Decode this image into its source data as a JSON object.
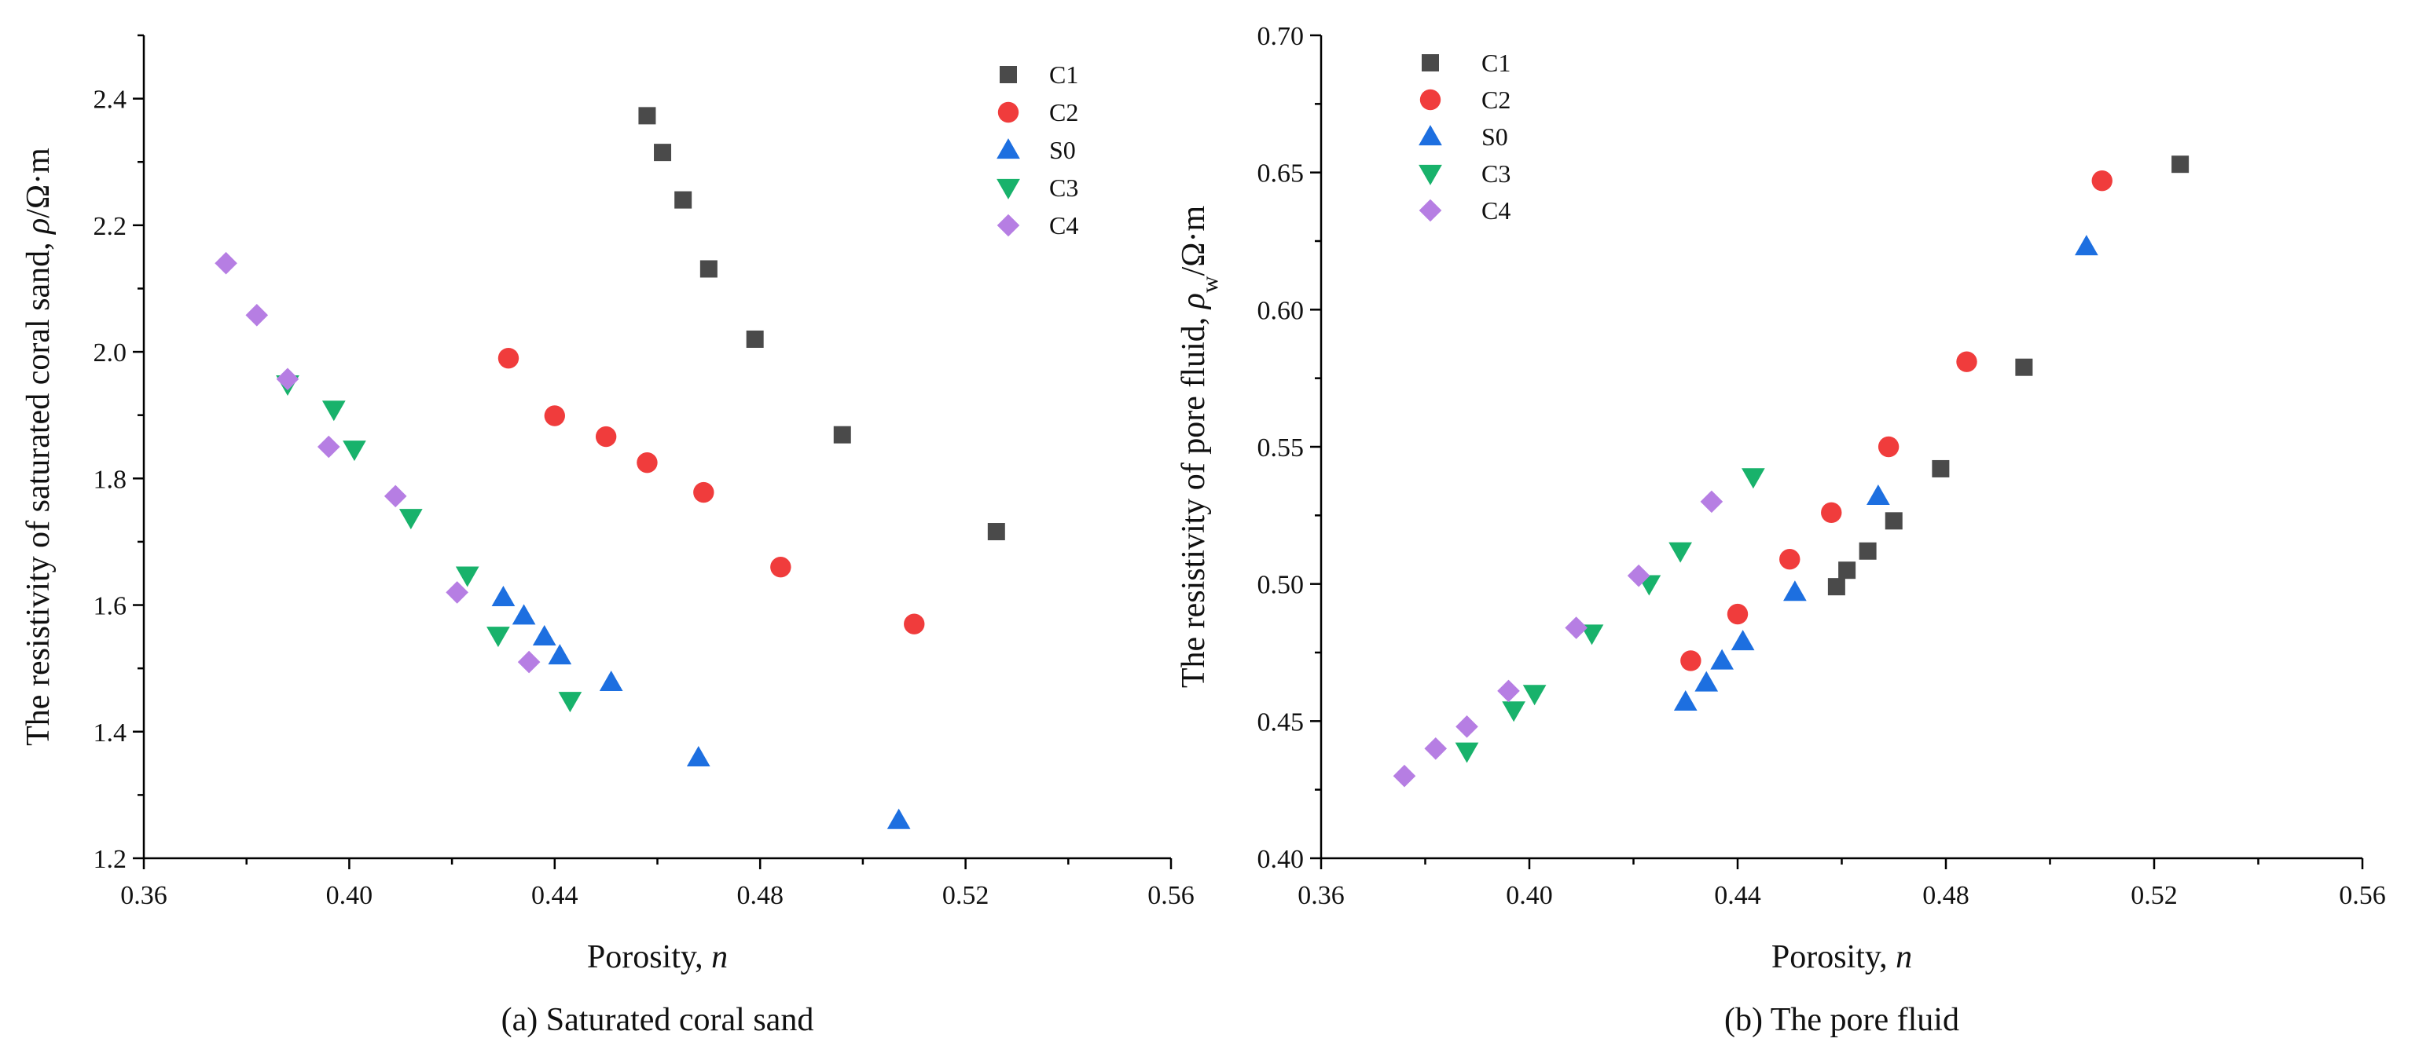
{
  "chart_data": [
    {
      "type": "scatter",
      "title": "",
      "caption": "(a) Saturated coral sand",
      "xlabel_text": "Porosity, ",
      "xlabel_italic": "n",
      "ylabel_prefix": "The resistivity of saturated coral sand, ",
      "ylabel_symbol": "ρ",
      "ylabel_sub": "",
      "ylabel_unit": "/Ω·m",
      "xlim": [
        0.36,
        0.56
      ],
      "ylim": [
        1.2,
        2.5
      ],
      "xticks": [
        0.36,
        0.4,
        0.44,
        0.48,
        0.52,
        0.56
      ],
      "xtick_labels": [
        "0.36",
        "0.40",
        "0.44",
        "0.48",
        "0.52",
        "0.56"
      ],
      "yticks": [
        1.2,
        1.4,
        1.6,
        1.8,
        2.0,
        2.2,
        2.4
      ],
      "ytick_labels": [
        "1.2",
        "1.4",
        "1.6",
        "1.8",
        "2.0",
        "2.2",
        "2.4"
      ],
      "legend_position": "top-right",
      "series": [
        {
          "name": "C1",
          "marker": "square",
          "color": "#4a4a4a",
          "x": [
            0.458,
            0.461,
            0.465,
            0.47,
            0.479,
            0.496,
            0.526
          ],
          "y": [
            2.373,
            2.315,
            2.24,
            2.131,
            2.02,
            1.869,
            1.716
          ]
        },
        {
          "name": "C2",
          "marker": "circle",
          "color": "#f03c3c",
          "x": [
            0.431,
            0.44,
            0.45,
            0.458,
            0.469,
            0.484,
            0.51
          ],
          "y": [
            1.99,
            1.899,
            1.866,
            1.825,
            1.778,
            1.66,
            1.57
          ]
        },
        {
          "name": "S0",
          "marker": "triangle-up",
          "color": "#1d6fe0",
          "x": [
            0.43,
            0.434,
            0.438,
            0.441,
            0.451,
            0.468,
            0.507
          ],
          "y": [
            1.612,
            1.583,
            1.55,
            1.52,
            1.478,
            1.359,
            1.26
          ]
        },
        {
          "name": "C3",
          "marker": "triangle-down",
          "color": "#18b26b",
          "x": [
            0.388,
            0.397,
            0.401,
            0.412,
            0.423,
            0.429,
            0.443
          ],
          "y": [
            1.949,
            1.909,
            1.846,
            1.738,
            1.647,
            1.552,
            1.449
          ]
        },
        {
          "name": "C4",
          "marker": "diamond",
          "color": "#b67ee3",
          "x": [
            0.376,
            0.382,
            0.388,
            0.396,
            0.409,
            0.421,
            0.435
          ],
          "y": [
            2.14,
            2.058,
            1.957,
            1.85,
            1.772,
            1.62,
            1.51
          ]
        }
      ]
    },
    {
      "type": "scatter",
      "title": "",
      "caption": "(b)  The pore fluid",
      "xlabel_text": "Porosity, ",
      "xlabel_italic": "n",
      "ylabel_prefix": "The resistivity of pore fluid, ",
      "ylabel_symbol": "ρ",
      "ylabel_sub": "w",
      "ylabel_unit": "/Ω·m",
      "xlim": [
        0.36,
        0.56
      ],
      "ylim": [
        0.4,
        0.7
      ],
      "xticks": [
        0.36,
        0.4,
        0.44,
        0.48,
        0.52,
        0.56
      ],
      "xtick_labels": [
        "0.36",
        "0.40",
        "0.44",
        "0.48",
        "0.52",
        "0.56"
      ],
      "yticks": [
        0.4,
        0.45,
        0.5,
        0.55,
        0.6,
        0.65,
        0.7
      ],
      "ytick_labels": [
        "0.40",
        "0.45",
        "0.50",
        "0.55",
        "0.60",
        "0.65",
        "0.70"
      ],
      "legend_position": "top-left",
      "series": [
        {
          "name": "C1",
          "marker": "square",
          "color": "#4a4a4a",
          "x": [
            0.459,
            0.461,
            0.465,
            0.47,
            0.479,
            0.495,
            0.525
          ],
          "y": [
            0.499,
            0.505,
            0.512,
            0.523,
            0.542,
            0.579,
            0.653
          ]
        },
        {
          "name": "C2",
          "marker": "circle",
          "color": "#f03c3c",
          "x": [
            0.431,
            0.44,
            0.45,
            0.458,
            0.469,
            0.484,
            0.51
          ],
          "y": [
            0.472,
            0.489,
            0.509,
            0.526,
            0.55,
            0.581,
            0.647
          ]
        },
        {
          "name": "S0",
          "marker": "triangle-up",
          "color": "#1d6fe0",
          "x": [
            0.43,
            0.434,
            0.437,
            0.441,
            0.451,
            0.467,
            0.507
          ],
          "y": [
            0.457,
            0.464,
            0.472,
            0.479,
            0.497,
            0.532,
            0.623
          ]
        },
        {
          "name": "C3",
          "marker": "triangle-down",
          "color": "#18b26b",
          "x": [
            0.388,
            0.397,
            0.401,
            0.412,
            0.423,
            0.429,
            0.443
          ],
          "y": [
            0.439,
            0.454,
            0.46,
            0.482,
            0.5,
            0.512,
            0.539
          ]
        },
        {
          "name": "C4",
          "marker": "diamond",
          "color": "#b67ee3",
          "x": [
            0.376,
            0.382,
            0.388,
            0.396,
            0.409,
            0.421,
            0.435
          ],
          "y": [
            0.43,
            0.44,
            0.448,
            0.461,
            0.484,
            0.503,
            0.53
          ]
        }
      ]
    }
  ]
}
